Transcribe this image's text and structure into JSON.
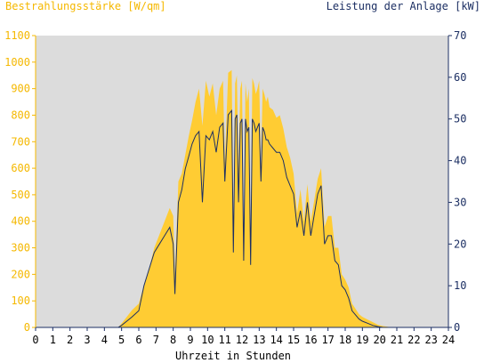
{
  "chart_data": {
    "type": "area",
    "title": "",
    "y_left_label": "Bestrahlungsstärke [W/qm]",
    "y_right_label": "Leistung der Anlage [kW]",
    "xlabel": "Uhrzeit in Stunden",
    "xlim": [
      0,
      24
    ],
    "ylim_left": [
      0,
      1100
    ],
    "ylim_right": [
      0,
      70
    ],
    "x_ticks": [
      "0",
      "1",
      "2",
      "3",
      "4",
      "5",
      "6",
      "7",
      "8",
      "9",
      "10",
      "11",
      "12",
      "13",
      "14",
      "15",
      "16",
      "17",
      "18",
      "19",
      "20",
      "21",
      "22",
      "23",
      "24"
    ],
    "y_left_ticks": [
      "0",
      "100",
      "200",
      "300",
      "400",
      "500",
      "600",
      "700",
      "800",
      "900",
      "1000",
      "1100"
    ],
    "y_right_ticks": [
      "0",
      "10",
      "20",
      "30",
      "40",
      "50",
      "60",
      "70"
    ],
    "grid": false,
    "colors": {
      "plot_bg": "#dcdcdc",
      "irradiance_fill": "#ffcc33",
      "power_line": "#1c2f63",
      "left_axis": "#f5b800",
      "right_axis": "#1c2f63"
    },
    "series": [
      {
        "axis": "left",
        "kind": "area",
        "x": [
          0,
          4.8,
          5.0,
          5.3,
          5.6,
          6.0,
          6.3,
          6.6,
          6.9,
          7.2,
          7.5,
          7.8,
          8.0,
          8.1,
          8.3,
          8.5,
          8.7,
          8.9,
          9.1,
          9.3,
          9.5,
          9.7,
          9.9,
          10.1,
          10.3,
          10.5,
          10.7,
          10.9,
          11.0,
          11.2,
          11.4,
          11.5,
          11.6,
          11.7,
          11.8,
          11.9,
          12.0,
          12.1,
          12.2,
          12.3,
          12.4,
          12.5,
          12.6,
          12.7,
          12.8,
          12.9,
          13.0,
          13.1,
          13.2,
          13.3,
          13.4,
          13.5,
          13.6,
          13.8,
          14.0,
          14.2,
          14.4,
          14.6,
          14.8,
          15.0,
          15.2,
          15.4,
          15.6,
          15.8,
          16.0,
          16.2,
          16.4,
          16.6,
          16.8,
          17.0,
          17.2,
          17.4,
          17.6,
          17.8,
          18.0,
          18.2,
          18.4,
          18.6,
          18.8,
          19.0,
          19.3,
          19.6,
          19.9,
          20.2,
          20.5,
          20.8,
          24
        ],
        "values": [
          0,
          0,
          15,
          40,
          65,
          90,
          160,
          220,
          300,
          350,
          400,
          450,
          420,
          200,
          550,
          580,
          650,
          720,
          780,
          850,
          900,
          760,
          930,
          870,
          920,
          800,
          900,
          930,
          620,
          960,
          970,
          350,
          920,
          950,
          600,
          900,
          930,
          300,
          920,
          850,
          900,
          250,
          940,
          920,
          880,
          900,
          930,
          600,
          900,
          880,
          850,
          870,
          830,
          820,
          790,
          800,
          750,
          680,
          640,
          580,
          430,
          520,
          400,
          540,
          400,
          480,
          560,
          600,
          380,
          420,
          420,
          300,
          300,
          200,
          180,
          150,
          90,
          70,
          50,
          40,
          30,
          20,
          10,
          5,
          2,
          0,
          0
        ]
      },
      {
        "axis": "right",
        "kind": "line",
        "x": [
          0,
          4.8,
          5.0,
          5.3,
          5.6,
          6.0,
          6.3,
          6.6,
          6.9,
          7.2,
          7.5,
          7.8,
          8.0,
          8.1,
          8.3,
          8.5,
          8.7,
          8.9,
          9.1,
          9.3,
          9.5,
          9.7,
          9.9,
          10.1,
          10.3,
          10.5,
          10.7,
          10.9,
          11.0,
          11.2,
          11.4,
          11.5,
          11.6,
          11.7,
          11.8,
          11.9,
          12.0,
          12.1,
          12.2,
          12.3,
          12.4,
          12.5,
          12.6,
          12.7,
          12.8,
          12.9,
          13.0,
          13.1,
          13.2,
          13.3,
          13.4,
          13.5,
          13.6,
          13.8,
          14.0,
          14.2,
          14.4,
          14.6,
          14.8,
          15.0,
          15.2,
          15.4,
          15.6,
          15.8,
          16.0,
          16.2,
          16.4,
          16.6,
          16.8,
          17.0,
          17.2,
          17.4,
          17.6,
          17.8,
          18.0,
          18.2,
          18.4,
          18.6,
          18.8,
          19.0,
          19.3,
          19.6,
          19.9,
          20.2,
          20.5,
          20.8,
          24
        ],
        "values": [
          0,
          0,
          0.5,
          1.5,
          2.5,
          4,
          10,
          14,
          18,
          20,
          22,
          24,
          20,
          8,
          30,
          33,
          38,
          41,
          44,
          46,
          47,
          30,
          46,
          45,
          47,
          42,
          48,
          49,
          35,
          51,
          52,
          18,
          50,
          51,
          30,
          49,
          50,
          16,
          50,
          47,
          48,
          15,
          50,
          49,
          47,
          48,
          49,
          35,
          48,
          47,
          45,
          45,
          44,
          43,
          42,
          42,
          40,
          36,
          34,
          32,
          24,
          28,
          22,
          30,
          22,
          27,
          32,
          34,
          20,
          22,
          22,
          16,
          15,
          10,
          9,
          7,
          4,
          3,
          2,
          1.5,
          1,
          0.5,
          0.2,
          0,
          0,
          0,
          0
        ]
      }
    ]
  }
}
